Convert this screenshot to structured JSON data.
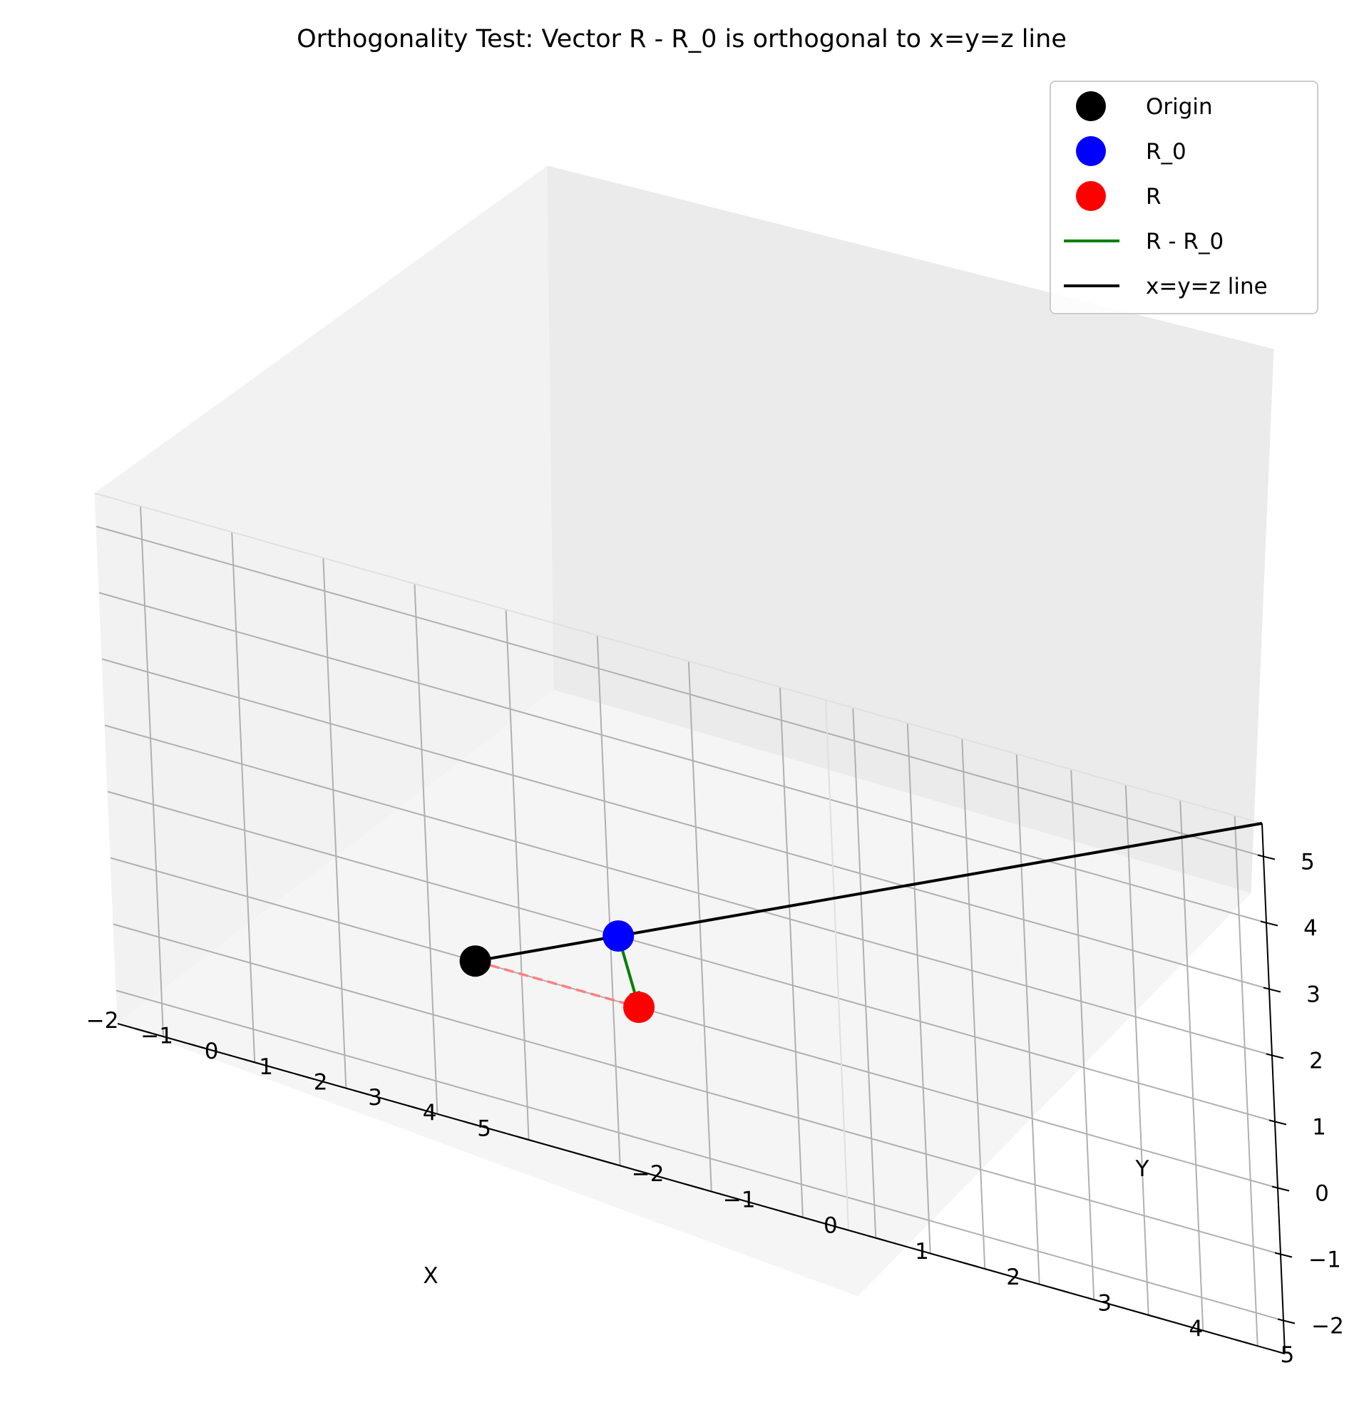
{
  "chart_data": {
    "type": "scatter",
    "projection": "3d",
    "title": "Orthogonality Test: Vector R - R_0 is orthogonal to x=y=z line",
    "xlabel": "X",
    "ylabel": "Y",
    "zlabel": "",
    "xlim": [
      -2.5,
      5.5
    ],
    "ylim": [
      -2.5,
      5.5
    ],
    "zlim": [
      -2.5,
      5.5
    ],
    "xticks": [
      -2,
      -1,
      0,
      1,
      2,
      3,
      4,
      5
    ],
    "yticks": [
      -2,
      -1,
      0,
      1,
      2,
      3,
      4,
      5
    ],
    "zticks": [
      -2,
      -1,
      0,
      1,
      2,
      3,
      4,
      5
    ],
    "xtick_labels": [
      "−2",
      "−1",
      "0",
      "1",
      "2",
      "3",
      "4",
      "5"
    ],
    "ytick_labels": [
      "−2",
      "−1",
      "0",
      "1",
      "2",
      "3",
      "4",
      "5"
    ],
    "ztick_labels": [
      "−2",
      "−1",
      "0",
      "1",
      "2",
      "3",
      "4",
      "5"
    ],
    "grid": true,
    "legend_position": "top-right",
    "points": [
      {
        "name": "Origin",
        "x": 0,
        "y": 0,
        "z": 0,
        "color": "#000000"
      },
      {
        "name": "R_0",
        "x": 1,
        "y": 1,
        "z": 1,
        "color": "#0000ff"
      },
      {
        "name": "R",
        "x": 3,
        "y": 0,
        "z": 0,
        "color": "#ff0000"
      }
    ],
    "lines": [
      {
        "name": "R - R_0",
        "kind": "arrow",
        "from": [
          1,
          1,
          1
        ],
        "to": [
          3,
          0,
          0
        ],
        "color": "#008000"
      },
      {
        "name": "x=y=z line",
        "kind": "line",
        "from": [
          0,
          0,
          0
        ],
        "to": [
          5.5,
          5.5,
          5.5
        ],
        "color": "#000000"
      },
      {
        "name": "",
        "kind": "dashed",
        "from": [
          0,
          0,
          0
        ],
        "to": [
          3,
          0,
          0
        ],
        "color": "#ff7f7f"
      }
    ],
    "legend": [
      {
        "label": "Origin",
        "kind": "marker",
        "color": "#000000"
      },
      {
        "label": "R_0",
        "kind": "marker",
        "color": "#0000ff"
      },
      {
        "label": "R",
        "kind": "marker",
        "color": "#ff0000"
      },
      {
        "label": "R - R_0",
        "kind": "line",
        "color": "#008000"
      },
      {
        "label": "x=y=z line",
        "kind": "line",
        "color": "#000000"
      }
    ]
  }
}
